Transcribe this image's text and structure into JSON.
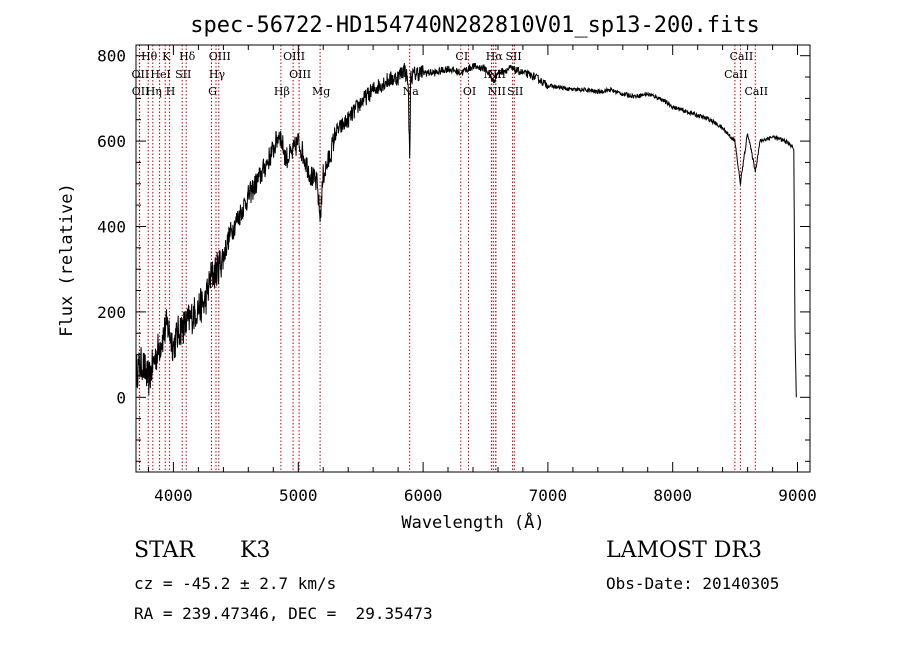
{
  "chart_data": {
    "type": "line",
    "title": "spec-56722-HD154740N282810V01_sp13-200.fits",
    "xlabel": "Wavelength (Å)",
    "ylabel": "Flux (relative)",
    "xlim": [
      3700,
      9100
    ],
    "ylim": [
      -175,
      825
    ],
    "xticks": [
      4000,
      5000,
      6000,
      7000,
      8000,
      9000
    ],
    "yticks": [
      0,
      200,
      400,
      600,
      800
    ],
    "grid": false,
    "series": [
      {
        "name": "spectrum",
        "x": [
          3700,
          3750,
          3800,
          3850,
          3900,
          3950,
          4000,
          4050,
          4100,
          4150,
          4200,
          4250,
          4300,
          4350,
          4400,
          4450,
          4500,
          4600,
          4700,
          4800,
          4850,
          4900,
          4950,
          5000,
          5050,
          5100,
          5150,
          5175,
          5200,
          5250,
          5300,
          5400,
          5500,
          5600,
          5700,
          5800,
          5850,
          5880,
          5893,
          5900,
          5950,
          6000,
          6100,
          6200,
          6300,
          6400,
          6500,
          6563,
          6600,
          6700,
          6800,
          6900,
          7000,
          7100,
          7200,
          7300,
          7400,
          7500,
          7600,
          7700,
          7800,
          7900,
          8000,
          8100,
          8200,
          8300,
          8400,
          8498,
          8542,
          8600,
          8662,
          8700,
          8800,
          8900,
          8950,
          8970,
          8980,
          8990
        ],
        "y": [
          60,
          80,
          40,
          90,
          130,
          170,
          120,
          160,
          170,
          190,
          210,
          220,
          280,
          300,
          330,
          380,
          410,
          470,
          520,
          580,
          620,
          560,
          570,
          600,
          560,
          520,
          500,
          420,
          520,
          560,
          620,
          650,
          690,
          720,
          740,
          750,
          770,
          740,
          550,
          750,
          760,
          760,
          760,
          770,
          760,
          775,
          770,
          740,
          760,
          770,
          760,
          750,
          730,
          725,
          720,
          720,
          715,
          720,
          710,
          705,
          710,
          700,
          680,
          670,
          660,
          650,
          630,
          600,
          500,
          620,
          530,
          600,
          610,
          600,
          590,
          580,
          150,
          0
        ]
      }
    ],
    "lines": [
      {
        "label": "Hθ",
        "x": 3798,
        "row": 0
      },
      {
        "label": "K",
        "x": 3934,
        "row": 0
      },
      {
        "label": "Hδ",
        "x": 4102,
        "row": 0
      },
      {
        "label": "OIII",
        "x": 4363,
        "row": 0
      },
      {
        "label": "OIII",
        "x": 4959,
        "row": 0
      },
      {
        "label": "CI",
        "x": 6302,
        "row": 0
      },
      {
        "label": "Hα",
        "x": 6563,
        "row": 0
      },
      {
        "label": "SII",
        "x": 6717,
        "row": 0
      },
      {
        "label": "CaII",
        "x": 8542,
        "row": 0
      },
      {
        "label": "OII",
        "x": 3727,
        "row": 1
      },
      {
        "label": "HeI",
        "x": 3889,
        "row": 1
      },
      {
        "label": "SII",
        "x": 4070,
        "row": 1
      },
      {
        "label": "Hγ",
        "x": 4341,
        "row": 1
      },
      {
        "label": "OIII",
        "x": 5007,
        "row": 1
      },
      {
        "label": "NII",
        "x": 6548,
        "row": 1
      },
      {
        "label": "NII",
        "x": 6583,
        "row": 1
      },
      {
        "label": "CaII",
        "x": 8498,
        "row": 1
      },
      {
        "label": "OII",
        "x": 3729,
        "row": 2
      },
      {
        "label": "Hη",
        "x": 3835,
        "row": 2
      },
      {
        "label": "H",
        "x": 3969,
        "row": 2
      },
      {
        "label": "G",
        "x": 4305,
        "row": 2
      },
      {
        "label": "Hβ",
        "x": 4861,
        "row": 2
      },
      {
        "label": "Mg",
        "x": 5175,
        "row": 2
      },
      {
        "label": "Na",
        "x": 5893,
        "row": 2
      },
      {
        "label": "OI",
        "x": 6364,
        "row": 2
      },
      {
        "label": "NII",
        "x": 6583,
        "row": 2
      },
      {
        "label": "SII",
        "x": 6731,
        "row": 2
      },
      {
        "label": "CaII",
        "x": 8662,
        "row": 2
      }
    ]
  },
  "info": {
    "object_type": "STAR",
    "subclass": "K3",
    "survey": "LAMOST DR3",
    "redshift": "cz = -45.2 ± 2.7 km/s",
    "obs_date": "Obs-Date: 20140305",
    "coords": "RA = 239.47346, DEC =  29.35473"
  }
}
